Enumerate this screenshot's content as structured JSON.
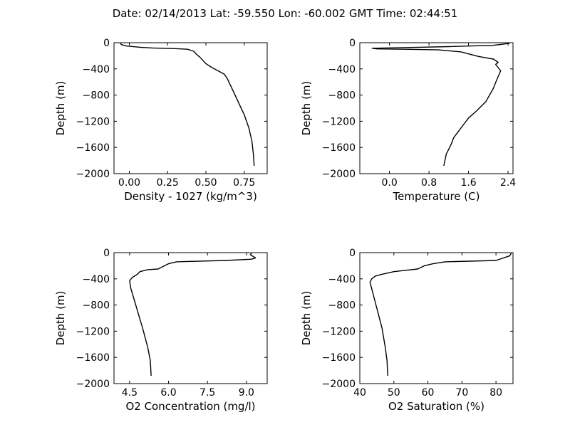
{
  "figure": {
    "title": "Date: 02/14/2013  Lat:  -59.550 Lon:  -60.002  GMT Time: 02:44:51"
  },
  "chart_data": [
    {
      "type": "line",
      "xlabel": "Density - 1027 (kg/m^3)",
      "ylabel": "Depth (m)",
      "xlim": [
        -0.1,
        0.9
      ],
      "ylim": [
        -2000,
        0
      ],
      "xticks": [
        0.0,
        0.25,
        0.5,
        0.75
      ],
      "xtick_labels": [
        "0.00",
        "0.25",
        "0.50",
        "0.75"
      ],
      "yticks": [
        0,
        -400,
        -800,
        -1200,
        -1600,
        -2000
      ],
      "ytick_labels": [
        "0",
        "−400",
        "−800",
        "−1200",
        "−1600",
        "−2000"
      ],
      "grid": false,
      "series": [
        {
          "x": [
            -0.06,
            -0.05,
            -0.02,
            0.07,
            0.15,
            0.3,
            0.38,
            0.42,
            0.44,
            0.46,
            0.48,
            0.5,
            0.54,
            0.58,
            0.62,
            0.64,
            0.66,
            0.69,
            0.72,
            0.75,
            0.78,
            0.8,
            0.81,
            0.815
          ],
          "y": [
            -10,
            -30,
            -50,
            -70,
            -80,
            -90,
            -100,
            -130,
            -180,
            -220,
            -270,
            -320,
            -380,
            -430,
            -480,
            -550,
            -650,
            -800,
            -950,
            -1100,
            -1300,
            -1500,
            -1700,
            -1880
          ]
        }
      ]
    },
    {
      "type": "line",
      "xlabel": "Temperature (C)",
      "ylabel": "Depth (m)",
      "xlim": [
        -0.6,
        2.5
      ],
      "ylim": [
        -2000,
        0
      ],
      "xticks": [
        0.0,
        0.8,
        1.6,
        2.4
      ],
      "xtick_labels": [
        "0.0",
        "0.8",
        "1.6",
        "2.4"
      ],
      "yticks": [
        0,
        -400,
        -800,
        -1200,
        -1600,
        -2000
      ],
      "ytick_labels": [
        "0",
        "−400",
        "−800",
        "−1200",
        "−1600",
        "−2000"
      ],
      "grid": false,
      "series": [
        {
          "x": [
            2.43,
            2.1,
            1.2,
            0.6,
            -0.35,
            -0.25,
            0.3,
            1.0,
            1.45,
            1.65,
            1.8,
            1.95,
            2.1,
            2.2,
            2.15,
            2.2,
            2.25,
            2.18,
            2.1,
            1.95,
            1.75,
            1.6,
            1.5,
            1.3,
            1.25,
            1.15,
            1.1
          ],
          "y": [
            -10,
            -40,
            -60,
            -70,
            -85,
            -95,
            -100,
            -110,
            -140,
            -180,
            -210,
            -230,
            -250,
            -300,
            -330,
            -380,
            -430,
            -550,
            -700,
            -900,
            -1050,
            -1150,
            -1250,
            -1450,
            -1550,
            -1700,
            -1880
          ]
        }
      ]
    },
    {
      "type": "line",
      "xlabel": "O2 Concentration (mg/l)",
      "ylabel": "Depth (m)",
      "xlim": [
        3.9,
        9.8
      ],
      "ylim": [
        -2000,
        0
      ],
      "xticks": [
        4.5,
        6.0,
        7.5,
        9.0
      ],
      "xtick_labels": [
        "4.5",
        "6.0",
        "7.5",
        "9.0"
      ],
      "yticks": [
        0,
        -400,
        -800,
        -1200,
        -1600,
        -2000
      ],
      "ytick_labels": [
        "0",
        "−400",
        "−800",
        "−1200",
        "−1600",
        "−2000"
      ],
      "grid": false,
      "series": [
        {
          "x": [
            9.2,
            9.15,
            9.35,
            9.2,
            8.2,
            6.3,
            6.0,
            5.8,
            5.6,
            5.2,
            4.9,
            4.8,
            4.6,
            4.5,
            4.55,
            4.7,
            4.85,
            5.0,
            5.2,
            5.3,
            5.33
          ],
          "y": [
            -10,
            -30,
            -80,
            -100,
            -120,
            -140,
            -170,
            -210,
            -250,
            -260,
            -290,
            -330,
            -380,
            -430,
            -550,
            -750,
            -950,
            -1150,
            -1450,
            -1650,
            -1880
          ]
        }
      ]
    },
    {
      "type": "line",
      "xlabel": "O2 Saturation (%)",
      "ylabel": "Depth (m)",
      "xlim": [
        40,
        85
      ],
      "ylim": [
        -2000,
        0
      ],
      "xticks": [
        40,
        50,
        60,
        70,
        80
      ],
      "xtick_labels": [
        "40",
        "50",
        "60",
        "70",
        "80"
      ],
      "yticks": [
        0,
        -400,
        -800,
        -1200,
        -1600,
        -2000
      ],
      "ytick_labels": [
        "0",
        "−400",
        "−800",
        "−1200",
        "−1600",
        "−2000"
      ],
      "grid": false,
      "series": [
        {
          "x": [
            84.5,
            84.0,
            80.0,
            65.0,
            61.5,
            59.0,
            57.0,
            53.5,
            50.0,
            46.5,
            44.5,
            43.5,
            43.0,
            43.5,
            44.5,
            45.5,
            46.5,
            47.5,
            48.0,
            48.2
          ],
          "y": [
            -10,
            -50,
            -120,
            -140,
            -170,
            -200,
            -250,
            -270,
            -290,
            -330,
            -360,
            -400,
            -450,
            -550,
            -750,
            -950,
            -1150,
            -1450,
            -1650,
            -1880
          ]
        }
      ]
    }
  ]
}
